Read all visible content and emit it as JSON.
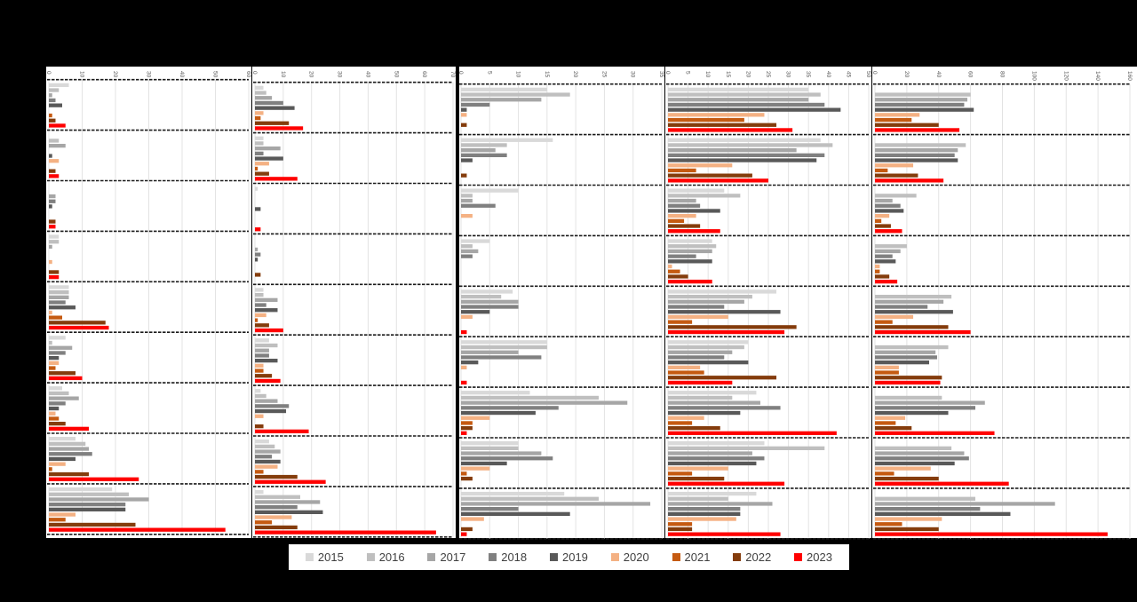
{
  "chart_data": {
    "type": "bar",
    "orientation": "horizontal",
    "legend_position": "bottom",
    "grid": true,
    "series_names": [
      "2015",
      "2016",
      "2017",
      "2018",
      "2019",
      "2020",
      "2021",
      "2022",
      "2023"
    ],
    "colors": [
      "#d9d9d9",
      "#bfbfbf",
      "#a6a6a6",
      "#808080",
      "#595959",
      "#f4b183",
      "#c55a11",
      "#843c0c",
      "#ff0000"
    ],
    "panels": [
      {
        "xlim": [
          0,
          60
        ],
        "ticks": [
          "0",
          "10",
          "20",
          "30",
          "40",
          "50",
          "60"
        ],
        "groups": [
          [
            6,
            3,
            1,
            2,
            4,
            0,
            1,
            2,
            5
          ],
          [
            0,
            3,
            5,
            0,
            1,
            3,
            0,
            2,
            3
          ],
          [
            0,
            0,
            2,
            2,
            1,
            0,
            0,
            2,
            2
          ],
          [
            3,
            3,
            1,
            0,
            0,
            1,
            0,
            3,
            3
          ],
          [
            6,
            6,
            6,
            5,
            8,
            1,
            4,
            17,
            18
          ],
          [
            5,
            1,
            7,
            5,
            3,
            3,
            2,
            8,
            10
          ],
          [
            4,
            6,
            9,
            5,
            3,
            2,
            3,
            5,
            12
          ],
          [
            8,
            11,
            12,
            13,
            8,
            5,
            1,
            12,
            27
          ],
          [
            19,
            24,
            30,
            23,
            23,
            8,
            5,
            26,
            53
          ]
        ]
      },
      {
        "xlim": [
          0,
          70
        ],
        "ticks": [
          "0",
          "10",
          "20",
          "30",
          "40",
          "50",
          "60",
          "70"
        ],
        "groups": [
          [
            3,
            4,
            6,
            10,
            14,
            3,
            2,
            12,
            17
          ],
          [
            3,
            3,
            9,
            3,
            10,
            5,
            1,
            5,
            15
          ],
          [
            1,
            0,
            0,
            0,
            2,
            0,
            0,
            0,
            2
          ],
          [
            0,
            0,
            1,
            2,
            1,
            0,
            0,
            2,
            0
          ],
          [
            3,
            3,
            8,
            4,
            8,
            4,
            1,
            5,
            10
          ],
          [
            5,
            8,
            5,
            5,
            8,
            3,
            3,
            6,
            9
          ],
          [
            2,
            4,
            8,
            12,
            11,
            3,
            0,
            3,
            19
          ],
          [
            5,
            7,
            9,
            6,
            9,
            8,
            3,
            15,
            25
          ],
          [
            3,
            16,
            23,
            15,
            24,
            13,
            6,
            15,
            64
          ]
        ]
      },
      {
        "xlim": [
          0,
          35
        ],
        "ticks": [
          "0",
          "5",
          "10",
          "15",
          "20",
          "25",
          "30",
          "35"
        ],
        "groups": [
          [
            15,
            19,
            14,
            5,
            1,
            1,
            0,
            1,
            0
          ],
          [
            16,
            8,
            6,
            8,
            2,
            0,
            0,
            1,
            0
          ],
          [
            10,
            2,
            2,
            6,
            0,
            2,
            0,
            0,
            0
          ],
          [
            5,
            2,
            3,
            2,
            0,
            0,
            0,
            0,
            0
          ],
          [
            9,
            7,
            10,
            10,
            5,
            2,
            0,
            0,
            1
          ],
          [
            15,
            15,
            10,
            14,
            3,
            1,
            0,
            0,
            1
          ],
          [
            12,
            24,
            29,
            17,
            13,
            5,
            2,
            2,
            1
          ],
          [
            10,
            10,
            14,
            16,
            8,
            5,
            1,
            2,
            0
          ],
          [
            18,
            24,
            33,
            10,
            19,
            4,
            0,
            2,
            1
          ]
        ]
      },
      {
        "xlim": [
          0,
          50
        ],
        "ticks": [
          "0",
          "5",
          "10",
          "15",
          "20",
          "25",
          "30",
          "35",
          "40",
          "45",
          "50"
        ],
        "groups": [
          [
            35,
            38,
            35,
            39,
            43,
            24,
            19,
            27,
            31
          ],
          [
            38,
            41,
            32,
            39,
            37,
            16,
            7,
            21,
            25
          ],
          [
            14,
            18,
            7,
            8,
            13,
            7,
            4,
            8,
            13
          ],
          [
            11,
            12,
            11,
            7,
            11,
            1,
            3,
            5,
            11
          ],
          [
            27,
            21,
            19,
            14,
            28,
            15,
            6,
            32,
            29
          ],
          [
            20,
            19,
            16,
            14,
            20,
            8,
            9,
            27,
            16
          ],
          [
            22,
            16,
            23,
            28,
            18,
            9,
            6,
            13,
            42
          ],
          [
            24,
            39,
            21,
            24,
            22,
            15,
            6,
            14,
            29
          ],
          [
            22,
            15,
            26,
            18,
            18,
            17,
            6,
            6,
            28
          ]
        ]
      },
      {
        "xlim": [
          0,
          160
        ],
        "ticks": [
          "0",
          "20",
          "40",
          "60",
          "80",
          "100",
          "120",
          "140",
          "160"
        ],
        "groups": [
          [
            0,
            60,
            58,
            56,
            62,
            28,
            23,
            40,
            53
          ],
          [
            0,
            57,
            52,
            50,
            52,
            24,
            8,
            27,
            43
          ],
          [
            0,
            26,
            11,
            16,
            18,
            9,
            4,
            10,
            17
          ],
          [
            0,
            20,
            16,
            11,
            13,
            3,
            3,
            9,
            14
          ],
          [
            0,
            48,
            43,
            33,
            49,
            24,
            11,
            46,
            60
          ],
          [
            0,
            46,
            38,
            39,
            34,
            15,
            15,
            42,
            41
          ],
          [
            0,
            42,
            69,
            63,
            46,
            19,
            13,
            23,
            75
          ],
          [
            0,
            48,
            56,
            59,
            50,
            35,
            12,
            40,
            84
          ],
          [
            0,
            63,
            113,
            66,
            85,
            42,
            17,
            40,
            146
          ]
        ]
      }
    ]
  }
}
